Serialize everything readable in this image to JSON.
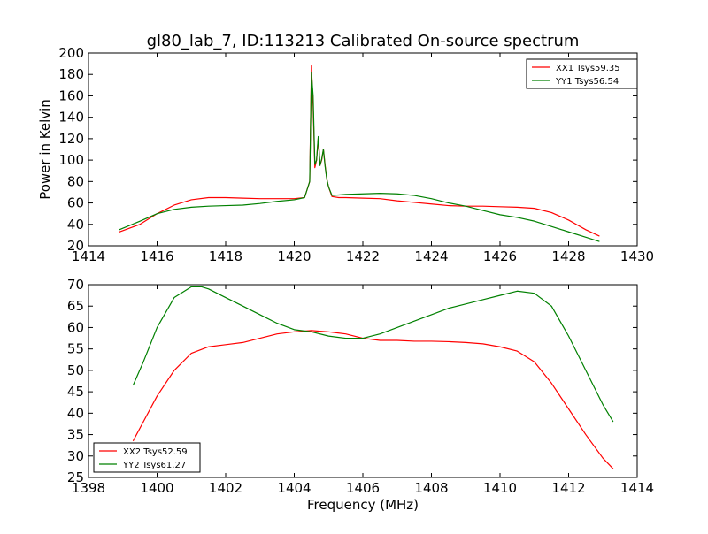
{
  "chart_data": [
    {
      "type": "line",
      "title": "gl80_lab_7, ID:113213 Calibrated On-source spectrum",
      "xlabel": "",
      "ylabel": "Power in Kelvin",
      "xlim": [
        1414,
        1430
      ],
      "ylim": [
        20,
        200
      ],
      "xticks": [
        "1414",
        "1416",
        "1418",
        "1420",
        "1422",
        "1424",
        "1426",
        "1428",
        "1430"
      ],
      "yticks": [
        "20",
        "40",
        "60",
        "80",
        "100",
        "120",
        "140",
        "160",
        "180",
        "200"
      ],
      "legend_position": "top-right",
      "grid": false,
      "series": [
        {
          "name": "XX1 Tsys59.35",
          "color": "#ff0000",
          "x": [
            1414.9,
            1415.5,
            1416.0,
            1416.5,
            1417.0,
            1417.5,
            1418.0,
            1418.5,
            1419.0,
            1419.5,
            1420.0,
            1420.3,
            1420.45,
            1420.5,
            1420.55,
            1420.6,
            1420.65,
            1420.7,
            1420.75,
            1420.8,
            1420.85,
            1420.9,
            1420.95,
            1421.0,
            1421.1,
            1421.3,
            1421.5,
            1422.0,
            1422.5,
            1423.0,
            1423.5,
            1424.0,
            1424.5,
            1425.0,
            1425.5,
            1426.0,
            1426.5,
            1427.0,
            1427.5,
            1428.0,
            1428.5,
            1428.9
          ],
          "y": [
            33,
            40,
            50,
            58,
            63,
            65,
            65,
            64.5,
            64,
            64,
            64,
            65,
            80,
            188,
            150,
            93,
            100,
            121,
            95,
            100,
            110,
            95,
            82,
            75,
            66,
            65,
            65,
            64.5,
            64,
            62,
            60.5,
            59,
            57.5,
            57,
            57,
            56.5,
            56,
            55,
            51,
            44,
            35,
            29
          ]
        },
        {
          "name": "YY1 Tsys56.54",
          "color": "#008000",
          "x": [
            1414.9,
            1415.5,
            1416.0,
            1416.5,
            1417.0,
            1417.5,
            1418.0,
            1418.5,
            1419.0,
            1419.5,
            1420.0,
            1420.3,
            1420.45,
            1420.5,
            1420.55,
            1420.6,
            1420.65,
            1420.7,
            1420.75,
            1420.8,
            1420.85,
            1420.9,
            1420.95,
            1421.0,
            1421.1,
            1421.3,
            1421.5,
            1422.0,
            1422.5,
            1423.0,
            1423.5,
            1424.0,
            1424.5,
            1425.0,
            1425.5,
            1426.0,
            1426.5,
            1427.0,
            1427.5,
            1428.0,
            1428.5,
            1428.9
          ],
          "y": [
            35,
            43,
            50,
            54,
            56,
            57,
            57.5,
            58,
            59.5,
            61.5,
            63,
            65,
            80,
            182,
            160,
            96,
            100,
            122,
            95,
            101,
            110,
            94,
            82,
            75,
            67,
            67.5,
            68,
            68.5,
            69,
            68.5,
            67,
            64,
            60,
            57,
            53,
            49,
            46.5,
            43,
            38,
            33,
            28,
            24
          ]
        }
      ]
    },
    {
      "type": "line",
      "title": "",
      "xlabel": "Frequency (MHz)",
      "ylabel": "",
      "xlim": [
        1398,
        1414
      ],
      "ylim": [
        25,
        70
      ],
      "xticks": [
        "1398",
        "1400",
        "1402",
        "1404",
        "1406",
        "1408",
        "1410",
        "1412",
        "1414"
      ],
      "yticks": [
        "25",
        "30",
        "35",
        "40",
        "45",
        "50",
        "55",
        "60",
        "65",
        "70"
      ],
      "legend_position": "bottom-left",
      "grid": false,
      "series": [
        {
          "name": "XX2 Tsys52.59",
          "color": "#ff0000",
          "x": [
            1399.3,
            1399.6,
            1400.0,
            1400.5,
            1401.0,
            1401.5,
            1402.0,
            1402.5,
            1403.0,
            1403.5,
            1404.0,
            1404.5,
            1405.0,
            1405.5,
            1406.0,
            1406.5,
            1407.0,
            1407.5,
            1408.0,
            1408.5,
            1409.0,
            1409.5,
            1410.0,
            1410.5,
            1411.0,
            1411.5,
            1412.0,
            1412.5,
            1413.0,
            1413.3
          ],
          "y": [
            33.5,
            38,
            44,
            50,
            54,
            55.5,
            56,
            56.5,
            57.5,
            58.5,
            59,
            59.3,
            59,
            58.5,
            57.5,
            57,
            57,
            56.8,
            56.8,
            56.7,
            56.5,
            56.2,
            55.5,
            54.5,
            52,
            47,
            41,
            35,
            29.5,
            27
          ]
        },
        {
          "name": "YY2 Tsys61.27",
          "color": "#008000",
          "x": [
            1399.3,
            1399.6,
            1400.0,
            1400.5,
            1401.0,
            1401.3,
            1401.5,
            1402.0,
            1402.5,
            1403.0,
            1403.5,
            1404.0,
            1404.5,
            1405.0,
            1405.5,
            1406.0,
            1406.5,
            1407.0,
            1407.5,
            1408.0,
            1408.5,
            1409.0,
            1409.5,
            1410.0,
            1410.5,
            1411.0,
            1411.5,
            1412.0,
            1412.5,
            1413.0,
            1413.3
          ],
          "y": [
            46.5,
            52,
            60,
            67,
            69.5,
            69.5,
            69,
            67,
            65,
            63,
            61,
            59.5,
            59,
            58,
            57.5,
            57.5,
            58.5,
            60,
            61.5,
            63,
            64.5,
            65.5,
            66.5,
            67.5,
            68.5,
            68,
            65,
            58,
            50,
            42,
            38
          ]
        }
      ]
    }
  ]
}
